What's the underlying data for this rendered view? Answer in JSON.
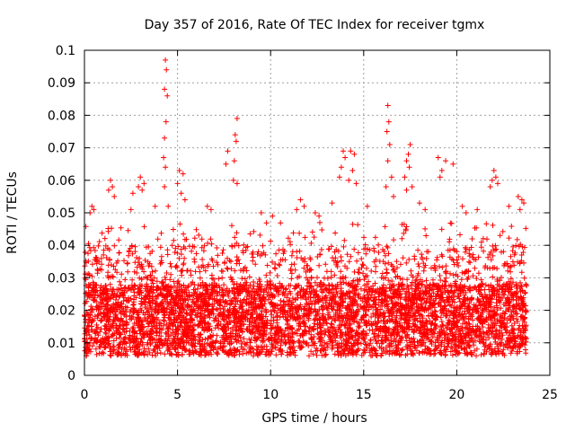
{
  "chart_data": {
    "type": "scatter",
    "title": "Day 357 of 2016, Rate Of TEC Index for receiver tgmx",
    "xlabel": "GPS time / hours",
    "ylabel": "ROTI / TECUs",
    "xlim": [
      0,
      25
    ],
    "ylim": [
      0,
      0.1
    ],
    "xticks": [
      0,
      5,
      10,
      15,
      20,
      25
    ],
    "xtick_labels": [
      "0",
      "5",
      "10",
      "15",
      "20",
      "25"
    ],
    "yticks": [
      0,
      0.01,
      0.02,
      0.03,
      0.04,
      0.05,
      0.06,
      0.07,
      0.08,
      0.09,
      0.1
    ],
    "ytick_labels": [
      "0",
      "0.01",
      "0.02",
      "0.03",
      "0.04",
      "0.05",
      "0.06",
      "0.07",
      "0.08",
      "0.09",
      "0.1"
    ],
    "grid": true,
    "marker": "+",
    "color": "#ff0000",
    "series": [
      {
        "name": "ROTI",
        "points": [
          [
            4.35,
            0.097
          ],
          [
            4.4,
            0.094
          ],
          [
            4.3,
            0.088
          ],
          [
            4.45,
            0.086
          ],
          [
            4.38,
            0.078
          ],
          [
            4.3,
            0.073
          ],
          [
            4.25,
            0.067
          ],
          [
            4.35,
            0.064
          ],
          [
            4.3,
            0.058
          ],
          [
            4.5,
            0.052
          ],
          [
            16.3,
            0.083
          ],
          [
            16.35,
            0.078
          ],
          [
            16.25,
            0.075
          ],
          [
            16.4,
            0.071
          ],
          [
            16.3,
            0.066
          ],
          [
            16.5,
            0.061
          ],
          [
            16.2,
            0.058
          ],
          [
            16.6,
            0.055
          ],
          [
            8.2,
            0.079
          ],
          [
            8.1,
            0.074
          ],
          [
            8.15,
            0.072
          ],
          [
            7.7,
            0.069
          ],
          [
            7.6,
            0.065
          ],
          [
            8.05,
            0.066
          ],
          [
            8.0,
            0.06
          ],
          [
            8.2,
            0.059
          ],
          [
            17.5,
            0.071
          ],
          [
            17.4,
            0.068
          ],
          [
            17.3,
            0.066
          ],
          [
            17.45,
            0.064
          ],
          [
            17.2,
            0.061
          ],
          [
            17.6,
            0.058
          ],
          [
            17.3,
            0.057
          ],
          [
            19.0,
            0.067
          ],
          [
            19.2,
            0.063
          ],
          [
            19.4,
            0.066
          ],
          [
            19.1,
            0.061
          ],
          [
            19.8,
            0.065
          ],
          [
            13.9,
            0.069
          ],
          [
            14.0,
            0.067
          ],
          [
            14.3,
            0.069
          ],
          [
            14.5,
            0.068
          ],
          [
            13.8,
            0.064
          ],
          [
            14.4,
            0.063
          ],
          [
            14.2,
            0.06
          ],
          [
            13.7,
            0.061
          ],
          [
            14.6,
            0.059
          ],
          [
            22.0,
            0.063
          ],
          [
            22.1,
            0.061
          ],
          [
            21.9,
            0.06
          ],
          [
            22.2,
            0.059
          ],
          [
            21.8,
            0.058
          ],
          [
            5.1,
            0.063
          ],
          [
            5.3,
            0.062
          ],
          [
            5.0,
            0.059
          ],
          [
            5.2,
            0.056
          ],
          [
            5.4,
            0.054
          ],
          [
            3.0,
            0.061
          ],
          [
            2.9,
            0.058
          ],
          [
            3.2,
            0.059
          ],
          [
            3.1,
            0.057
          ],
          [
            2.6,
            0.056
          ],
          [
            1.4,
            0.06
          ],
          [
            1.5,
            0.058
          ],
          [
            1.3,
            0.057
          ],
          [
            1.6,
            0.055
          ],
          [
            0.4,
            0.052
          ],
          [
            0.5,
            0.051
          ],
          [
            0.3,
            0.05
          ],
          [
            2.5,
            0.051
          ],
          [
            3.8,
            0.052
          ],
          [
            6.6,
            0.052
          ],
          [
            6.8,
            0.051
          ],
          [
            9.5,
            0.05
          ],
          [
            10.1,
            0.049
          ],
          [
            11.6,
            0.054
          ],
          [
            11.8,
            0.052
          ],
          [
            11.4,
            0.051
          ],
          [
            12.4,
            0.05
          ],
          [
            12.6,
            0.049
          ],
          [
            13.3,
            0.053
          ],
          [
            15.2,
            0.052
          ],
          [
            18.0,
            0.053
          ],
          [
            18.3,
            0.051
          ],
          [
            20.3,
            0.052
          ],
          [
            20.5,
            0.05
          ],
          [
            21.1,
            0.051
          ],
          [
            22.8,
            0.052
          ],
          [
            23.3,
            0.055
          ],
          [
            23.5,
            0.054
          ],
          [
            23.6,
            0.053
          ],
          [
            23.4,
            0.051
          ]
        ]
      }
    ]
  }
}
